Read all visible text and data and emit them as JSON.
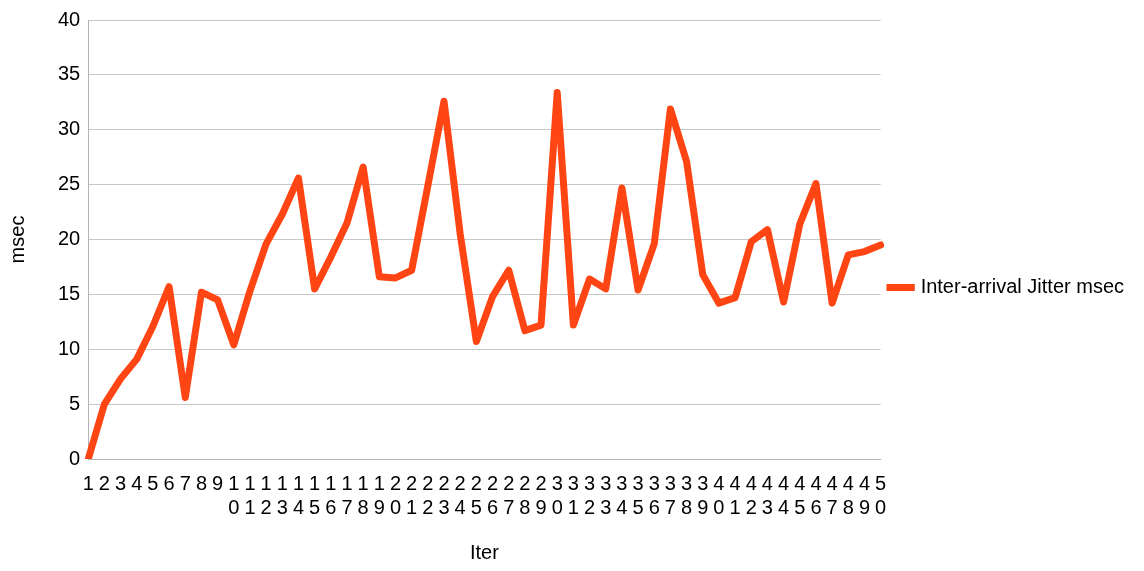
{
  "chart_data": {
    "type": "line",
    "xlabel": "Iter",
    "ylabel": "msec",
    "categories": [
      "1",
      "2",
      "3",
      "4",
      "5",
      "6",
      "7",
      "8",
      "9",
      "10",
      "11",
      "12",
      "13",
      "14",
      "15",
      "16",
      "17",
      "18",
      "19",
      "20",
      "21",
      "22",
      "23",
      "24",
      "25",
      "26",
      "27",
      "28",
      "29",
      "30",
      "31",
      "32",
      "33",
      "34",
      "35",
      "36",
      "37",
      "38",
      "39",
      "40",
      "41",
      "42",
      "43",
      "44",
      "45",
      "46",
      "47",
      "48",
      "49",
      "50"
    ],
    "series": [
      {
        "name": "Inter-arrival Jitter msec",
        "color": "#ff4513",
        "values": [
          0,
          5.0,
          7.3,
          9.1,
          12.1,
          15.7,
          5.6,
          15.2,
          14.5,
          10.4,
          15.3,
          19.6,
          22.3,
          25.6,
          15.5,
          18.4,
          21.5,
          26.6,
          16.6,
          16.5,
          17.2,
          24.9,
          32.6,
          20.5,
          10.7,
          14.8,
          17.2,
          11.7,
          12.2,
          33.4,
          12.2,
          16.4,
          15.5,
          24.7,
          15.4,
          19.6,
          31.9,
          27.1,
          16.8,
          14.2,
          14.7,
          19.8,
          20.9,
          14.3,
          21.4,
          25.1,
          14.2,
          18.6,
          18.9,
          19.5
        ]
      }
    ],
    "ylim": [
      0,
      40
    ],
    "yticks": [
      0,
      5,
      10,
      15,
      20,
      25,
      30,
      35,
      40
    ],
    "grid": "y",
    "legend": "right",
    "marker": "none",
    "line_style": "solid"
  }
}
